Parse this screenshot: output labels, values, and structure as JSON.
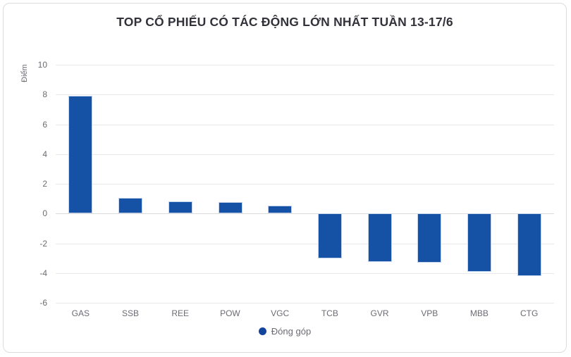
{
  "chart_data": {
    "type": "bar",
    "title": "TOP CỔ PHIẾU CÓ TÁC ĐỘNG LỚN NHẤT TUẦN 13-17/6",
    "xlabel": "",
    "ylabel": "Điểm",
    "categories": [
      "GAS",
      "SSB",
      "REE",
      "POW",
      "VGC",
      "TCB",
      "GVR",
      "VPB",
      "MBB",
      "CTG"
    ],
    "series": [
      {
        "name": "Đóng góp",
        "values": [
          7.9,
          1.05,
          0.8,
          0.75,
          0.55,
          -3.0,
          -3.25,
          -3.3,
          -3.9,
          -4.2
        ]
      }
    ],
    "ylim": [
      -6,
      10
    ],
    "yticks": [
      10,
      8,
      6,
      4,
      2,
      0,
      -2,
      -4,
      -6
    ],
    "grid": true,
    "legend_position": "bottom",
    "colors": {
      "bar": "#1552a5",
      "bar_border": "#c3d3ee",
      "grid": "#e8e8e8",
      "title": "#32323a",
      "labels": "#6b6b74",
      "legend_dot": "#14459c"
    }
  }
}
